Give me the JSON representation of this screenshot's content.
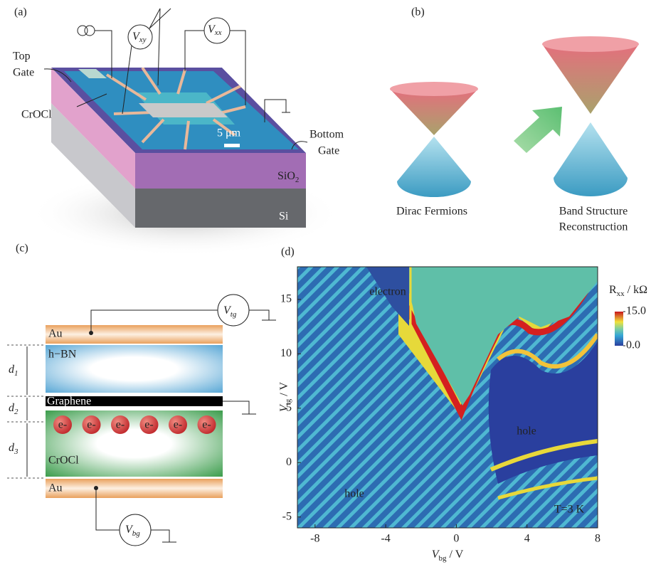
{
  "panel_a": {
    "label": "(a)",
    "top_gate": [
      "Top",
      "Gate"
    ],
    "crocl": "CrOCl",
    "scale": "5 μm",
    "bottom_gate": [
      "Bottom",
      "Gate"
    ],
    "sio2": {
      "main": "SiO",
      "sub": "2"
    },
    "si": "Si",
    "vxy": {
      "main": "V",
      "sub": "xy"
    },
    "vxx": {
      "main": "V",
      "sub": "xx"
    }
  },
  "panel_b": {
    "label": "(b)",
    "left_caption": "Dirac Fermions",
    "right_caption": [
      "Band Structure",
      "Reconstruction"
    ]
  },
  "panel_c": {
    "label": "(c)",
    "vtg": {
      "main": "V",
      "sub": "tg"
    },
    "au_top": "Au",
    "hbn": "h−BN",
    "graphene": "Graphene",
    "crocl": "CrOCl",
    "au_bottom": "Au",
    "vbg": {
      "main": "V",
      "sub": "bg"
    },
    "d1": {
      "main": "d",
      "sub": "1"
    },
    "d2": {
      "main": "d",
      "sub": "2"
    },
    "d3": {
      "main": "d",
      "sub": "3"
    },
    "electrons": [
      "e-",
      "e-",
      "e-",
      "e-",
      "e-",
      "e-"
    ]
  },
  "panel_d": {
    "label": "(d)",
    "type": "heatmap",
    "xlabel": {
      "main": "V",
      "sub": "bg",
      "unit": " / V"
    },
    "ylabel": {
      "main": "V",
      "sub": "tg",
      "unit": " / V"
    },
    "xlim": [
      -9,
      8
    ],
    "xticks": [
      -8,
      -4,
      0,
      4,
      8
    ],
    "ylim": [
      -6,
      18
    ],
    "yticks": [
      -5,
      0,
      5,
      10,
      15
    ],
    "colorbar": {
      "title": {
        "main": "R",
        "sub": "xx",
        "unit": " / kΩ"
      },
      "lim": [
        0,
        15
      ],
      "ticks": [
        {
          "value": 15,
          "label": "15.0"
        },
        {
          "value": 0,
          "label": "0.0"
        }
      ]
    },
    "annotations": [
      "electron",
      "hole",
      "hole",
      "T=3 K"
    ]
  }
}
